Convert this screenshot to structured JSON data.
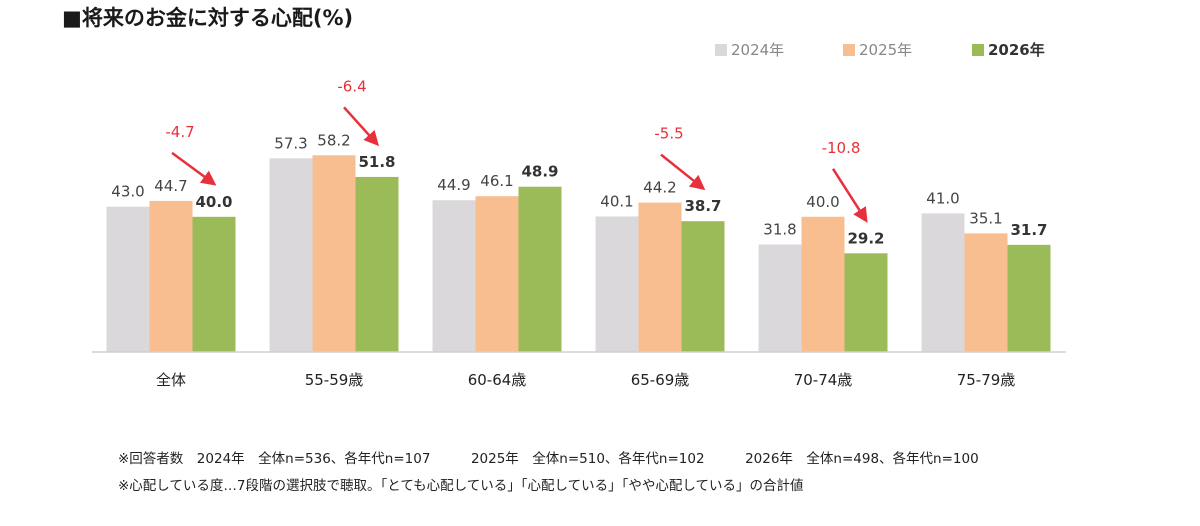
{
  "chart_data": {
    "type": "bar",
    "title": "■将来のお金に対する心配(%)",
    "categories": [
      "全体",
      "55-59歳",
      "60-64歳",
      "65-69歳",
      "70-74歳",
      "75-79歳"
    ],
    "series": [
      {
        "name": "2024年",
        "values": [
          43.0,
          57.3,
          44.9,
          40.1,
          31.8,
          41.0
        ],
        "color": "#dbd8dc",
        "bold": false
      },
      {
        "name": "2025年",
        "values": [
          44.7,
          58.2,
          46.1,
          44.2,
          40.0,
          35.1
        ],
        "color": "#f9be8f",
        "bold": false
      },
      {
        "name": "2026年",
        "values": [
          40.0,
          51.8,
          48.9,
          38.7,
          29.2,
          31.7
        ],
        "color": "#9bbb59",
        "bold": true
      }
    ],
    "annotations": [
      {
        "category": "全体",
        "text": "-4.7"
      },
      {
        "category": "55-59歳",
        "text": "-6.4"
      },
      {
        "category": "65-69歳",
        "text": "-5.5"
      },
      {
        "category": "70-74歳",
        "text": "-10.8"
      }
    ],
    "annotation_color": "#e8303c",
    "ylim": [
      0,
      70
    ],
    "grid": false,
    "legend": "top-right",
    "xlabel": "",
    "ylabel": ""
  },
  "notes": [
    "※回答者数　2024年　全体n=536、各年代n=107　　　2025年　全体n=510、各年代n=102　　　2026年　全体n=498、各年代n=100",
    "※心配している度…7段階の選択肢で聴取。「とても心配している」「心配している」「やや心配している」の合計値"
  ]
}
